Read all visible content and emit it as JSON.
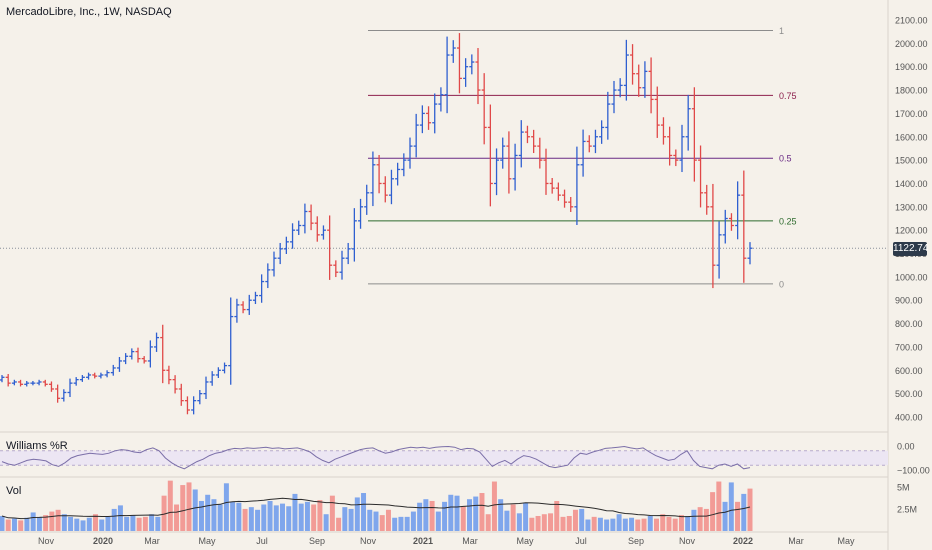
{
  "header": {
    "title": "MercadoLibre, Inc., 1W, NASDAQ"
  },
  "price_tag": "1122.74",
  "panels": {
    "williams_label": "Williams %R",
    "vol_label": "Vol"
  },
  "colors": {
    "up": "#2f5fd0",
    "down": "#e04848",
    "vol_up": "#7fa6ec",
    "vol_down": "#f29b96",
    "williams_line": "#7b6fa8"
  },
  "chart_data": [
    {
      "type": "ohlc",
      "title": "MercadoLibre, Inc., 1W, NASDAQ",
      "ylim": [
        400,
        2100
      ],
      "y_ticks": [
        "2100.00",
        "2000.00",
        "1900.00",
        "1800.00",
        "1700.00",
        "1600.00",
        "1500.00",
        "1400.00",
        "1300.00",
        "1200.00",
        "1100.00",
        "1000.00",
        "900.00",
        "800.00",
        "700.00",
        "600.00",
        "500.00",
        "400.00"
      ],
      "x_ticks": [
        "Nov",
        "2020",
        "Mar",
        "May",
        "Jul",
        "Sep",
        "Nov",
        "2021",
        "Mar",
        "May",
        "Jul",
        "Sep",
        "Nov",
        "2022",
        "Mar",
        "May"
      ],
      "last_price": 1122.74,
      "fib_levels": [
        {
          "label": "1",
          "value": 2055,
          "color": "#8c8c8c"
        },
        {
          "label": "0.75",
          "value": 1777,
          "color": "#8c1f4c"
        },
        {
          "label": "0.5",
          "value": 1508,
          "color": "#6a2a85"
        },
        {
          "label": "0.25",
          "value": 1240,
          "color": "#2e6b2e"
        },
        {
          "label": "0",
          "value": 970,
          "color": "#8c8c8c"
        }
      ],
      "closes": [
        570,
        545,
        550,
        540,
        545,
        545,
        550,
        540,
        520,
        480,
        505,
        545,
        560,
        570,
        580,
        575,
        580,
        590,
        610,
        640,
        660,
        680,
        650,
        640,
        700,
        740,
        600,
        560,
        520,
        470,
        430,
        470,
        500,
        550,
        580,
        600,
        620,
        830,
        880,
        860,
        900,
        920,
        980,
        1030,
        1080,
        1120,
        1150,
        1200,
        1220,
        1280,
        1230,
        1180,
        1200,
        1050,
        1020,
        1080,
        1120,
        1240,
        1300,
        1360,
        1480,
        1400,
        1350,
        1420,
        1460,
        1500,
        1560,
        1650,
        1700,
        1660,
        1740,
        1780,
        1950,
        1980,
        1850,
        1900,
        1920,
        1800,
        1640,
        1400,
        1500,
        1560,
        1420,
        1520,
        1620,
        1600,
        1560,
        1500,
        1400,
        1380,
        1350,
        1320,
        1300,
        1480,
        1580,
        1560,
        1600,
        1640,
        1740,
        1800,
        1820,
        1950,
        1870,
        1810,
        1880,
        1760,
        1650,
        1600,
        1520,
        1500,
        1600,
        1720,
        1500,
        1360,
        1300,
        1050,
        1180,
        1250,
        1220,
        1350,
        1080,
        1122.74
      ]
    },
    {
      "type": "line",
      "title": "Williams %R",
      "ylim": [
        -100,
        0
      ],
      "y_ticks": [
        "0.00",
        "−100.00"
      ],
      "values": [
        -65,
        -75,
        -80,
        -70,
        -60,
        -55,
        -58,
        -62,
        -78,
        -85,
        -70,
        -50,
        -40,
        -35,
        -30,
        -33,
        -35,
        -30,
        -20,
        -15,
        -18,
        -25,
        -28,
        -15,
        -8,
        -20,
        -50,
        -70,
        -85,
        -95,
        -80,
        -65,
        -55,
        -40,
        -30,
        -25,
        -15,
        -10,
        -12,
        -8,
        -10,
        -8,
        -5,
        -10,
        -8,
        -12,
        -10,
        -8,
        -15,
        -25,
        -45,
        -60,
        -70,
        -55,
        -45,
        -35,
        -25,
        -15,
        -10,
        -8,
        -20,
        -30,
        -25,
        -15,
        -10,
        -5,
        -8,
        -5,
        -10,
        -5,
        -3,
        -2,
        -5,
        -15,
        -10,
        -12,
        -25,
        -55,
        -85,
        -70,
        -60,
        -75,
        -55,
        -40,
        -45,
        -55,
        -70,
        -85,
        -90,
        -85,
        -80,
        -50,
        -30,
        -35,
        -25,
        -18,
        -10,
        -8,
        -5,
        -2,
        -8,
        -12,
        -8,
        -25,
        -40,
        -50,
        -60,
        -55,
        -35,
        -20,
        -60,
        -85,
        -90,
        -95,
        -80,
        -75,
        -85,
        -75,
        -95,
        -90
      ]
    },
    {
      "type": "bar",
      "title": "Vol",
      "ylim": [
        0,
        6
      ],
      "y_ticks": [
        "5M",
        "2.5M"
      ],
      "values": [
        1.7,
        1.3,
        1.4,
        1.2,
        1.5,
        2.1,
        1.6,
        1.8,
        2.2,
        2.4,
        1.9,
        1.6,
        1.4,
        1.2,
        1.5,
        1.9,
        1.3,
        1.6,
        2.5,
        2.9,
        1.6,
        1.8,
        1.5,
        1.6,
        1.9,
        1.6,
        4.0,
        5.7,
        3.0,
        5.2,
        5.5,
        4.7,
        3.4,
        4.1,
        3.6,
        3.0,
        5.4,
        3.3,
        3.2,
        2.5,
        2.7,
        2.4,
        3.0,
        3.4,
        2.9,
        3.1,
        2.8,
        4.2,
        3.1,
        3.3,
        3.0,
        3.5,
        1.9,
        4.0,
        1.5,
        2.7,
        2.5,
        3.8,
        4.3,
        2.4,
        2.2,
        1.8,
        2.4,
        1.5,
        1.6,
        1.6,
        2.2,
        3.2,
        3.6,
        3.4,
        2.2,
        3.3,
        4.1,
        4.0,
        2.8,
        3.6,
        3.9,
        4.3,
        1.9,
        5.6,
        3.6,
        2.3,
        3.0,
        2.0,
        3.2,
        1.5,
        1.7,
        1.9,
        2.0,
        3.4,
        1.6,
        1.7,
        2.4,
        2.5,
        1.3,
        1.6,
        1.5,
        1.3,
        1.4,
        1.9,
        1.4,
        1.5,
        1.3,
        1.4,
        1.7,
        1.4,
        1.9,
        1.6,
        1.4,
        1.8,
        1.7,
        2.4,
        2.7,
        2.5,
        4.4,
        5.6,
        3.3,
        5.5,
        3.3,
        4.2,
        4.8
      ]
    }
  ]
}
